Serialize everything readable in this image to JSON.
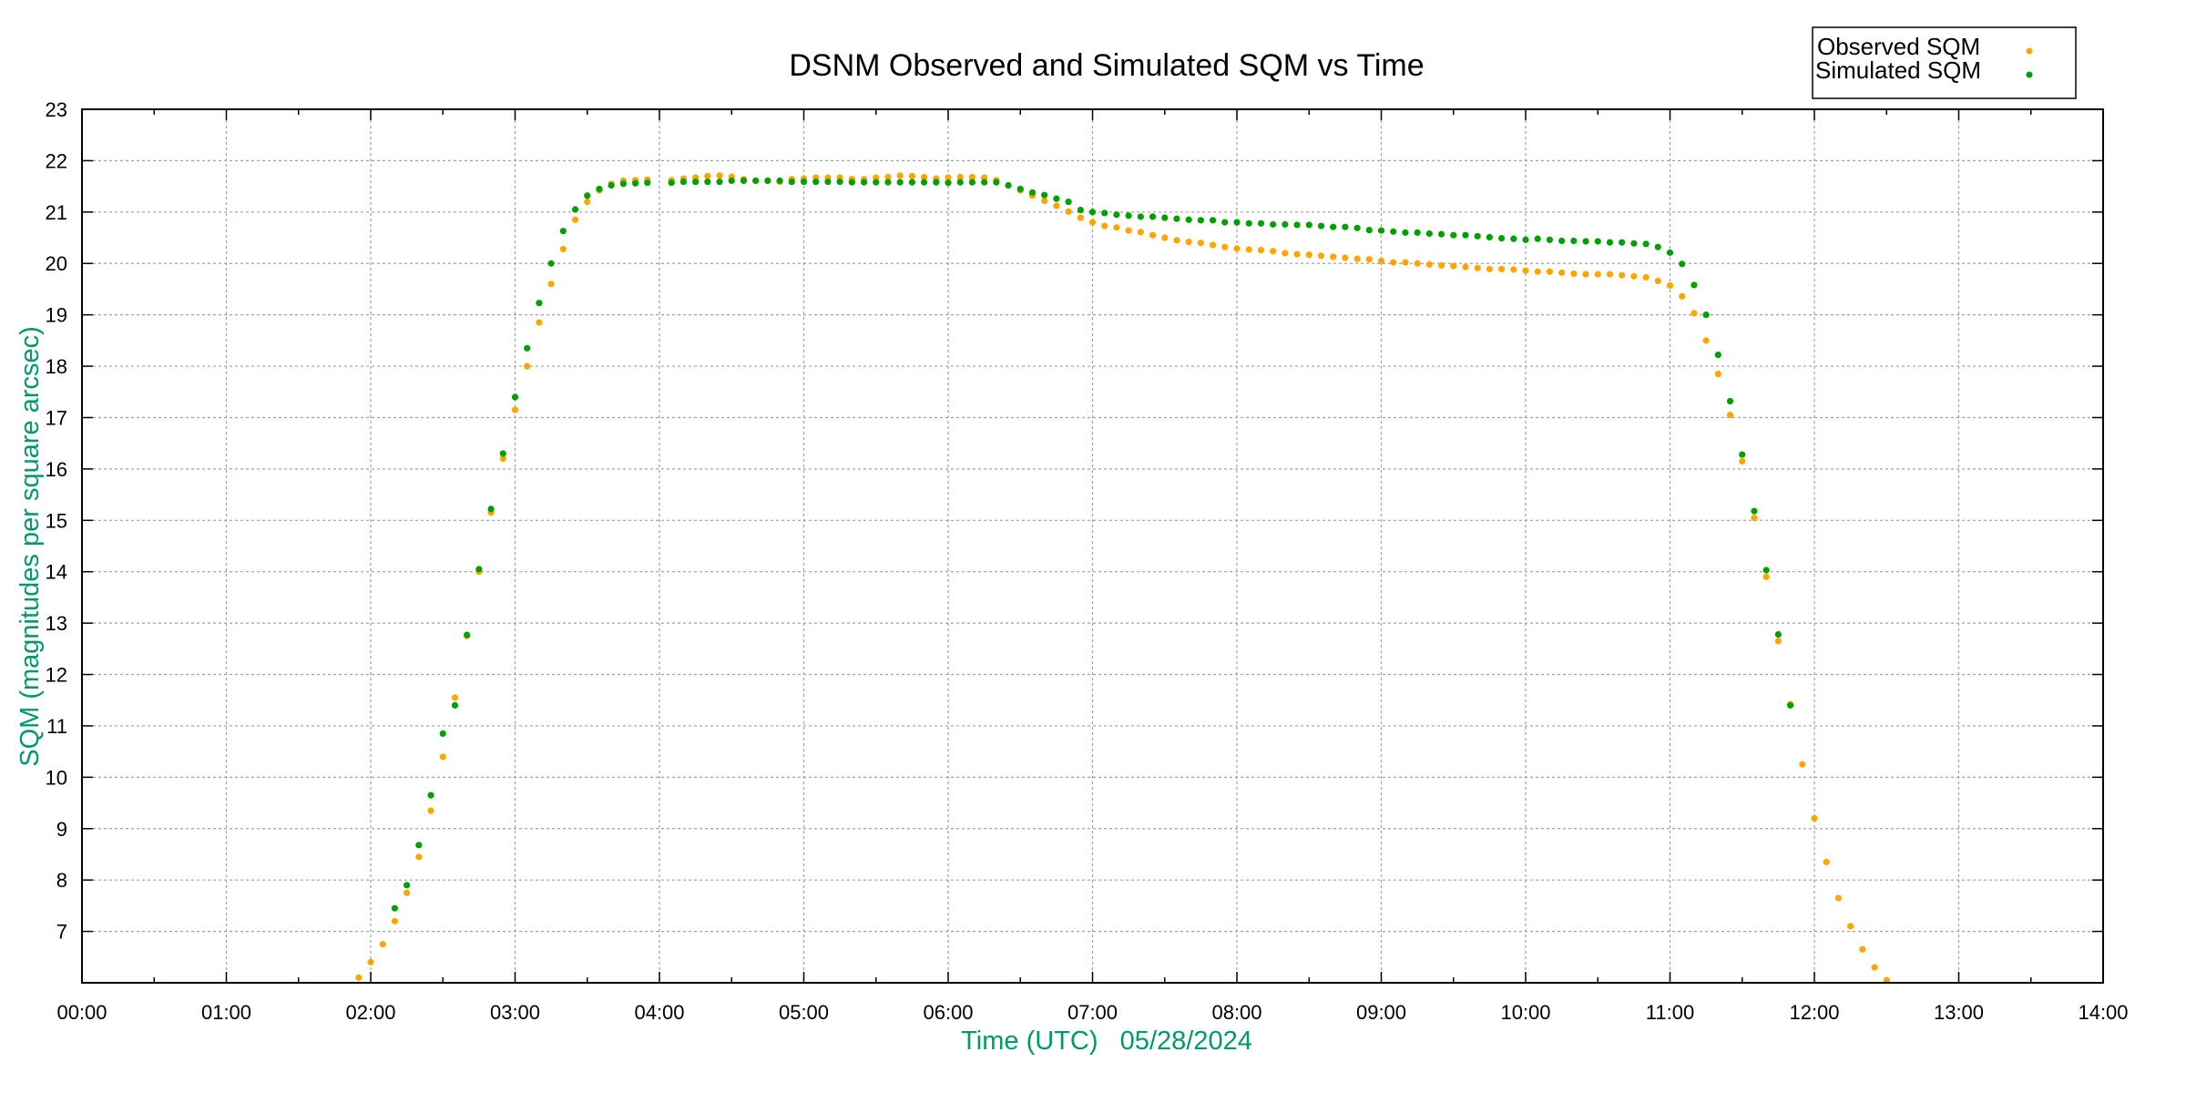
{
  "chart_data": {
    "type": "scatter",
    "title": "DSNM Observed and Simulated SQM vs Time",
    "xlabel": "Time (UTC)   05/28/2024",
    "ylabel": "SQM (magnitudes per square arcsec)",
    "xlim": [
      "00:00",
      "14:00"
    ],
    "ylim": [
      6,
      23
    ],
    "x_ticks": [
      "00:00",
      "01:00",
      "02:00",
      "03:00",
      "04:00",
      "05:00",
      "06:00",
      "07:00",
      "08:00",
      "09:00",
      "10:00",
      "11:00",
      "12:00",
      "13:00",
      "14:00"
    ],
    "y_ticks": [
      7,
      8,
      9,
      10,
      11,
      12,
      13,
      14,
      15,
      16,
      17,
      18,
      19,
      20,
      21,
      22,
      23
    ],
    "grid": true,
    "legend_position": "top-right",
    "series": [
      {
        "name": "Observed SQM",
        "color": "#ffa500",
        "points": [
          [
            "01:55",
            6.1
          ],
          [
            "02:00",
            6.4
          ],
          [
            "02:05",
            6.75
          ],
          [
            "02:10",
            7.2
          ],
          [
            "02:15",
            7.75
          ],
          [
            "02:20",
            8.45
          ],
          [
            "02:25",
            9.35
          ],
          [
            "02:30",
            10.4
          ],
          [
            "02:35",
            11.55
          ],
          [
            "02:40",
            12.75
          ],
          [
            "02:45",
            14.0
          ],
          [
            "02:50",
            15.15
          ],
          [
            "02:55",
            16.2
          ],
          [
            "03:00",
            17.15
          ],
          [
            "03:05",
            18.0
          ],
          [
            "03:10",
            18.85
          ],
          [
            "03:15",
            19.6
          ],
          [
            "03:20",
            20.28
          ],
          [
            "03:25",
            20.85
          ],
          [
            "03:30",
            21.2
          ],
          [
            "03:35",
            21.42
          ],
          [
            "03:40",
            21.55
          ],
          [
            "03:45",
            21.61
          ],
          [
            "03:50",
            21.62
          ],
          [
            "03:55",
            21.63
          ],
          [
            "04:05",
            21.62
          ],
          [
            "04:10",
            21.65
          ],
          [
            "04:15",
            21.67
          ],
          [
            "04:20",
            21.7
          ],
          [
            "04:25",
            21.71
          ],
          [
            "04:30",
            21.69
          ],
          [
            "04:35",
            21.64
          ],
          [
            "04:40",
            21.61
          ],
          [
            "04:45",
            21.61
          ],
          [
            "04:50",
            21.59
          ],
          [
            "04:55",
            21.64
          ],
          [
            "05:00",
            21.65
          ],
          [
            "05:05",
            21.67
          ],
          [
            "05:10",
            21.67
          ],
          [
            "05:15",
            21.67
          ],
          [
            "05:20",
            21.64
          ],
          [
            "05:25",
            21.64
          ],
          [
            "05:30",
            21.67
          ],
          [
            "05:35",
            21.68
          ],
          [
            "05:40",
            21.71
          ],
          [
            "05:45",
            21.7
          ],
          [
            "05:50",
            21.68
          ],
          [
            "05:55",
            21.65
          ],
          [
            "06:00",
            21.67
          ],
          [
            "06:05",
            21.68
          ],
          [
            "06:10",
            21.68
          ],
          [
            "06:15",
            21.67
          ],
          [
            "06:20",
            21.62
          ],
          [
            "06:25",
            21.52
          ],
          [
            "06:30",
            21.42
          ],
          [
            "06:35",
            21.32
          ],
          [
            "06:40",
            21.22
          ],
          [
            "06:45",
            21.12
          ],
          [
            "06:50",
            21.01
          ],
          [
            "06:55",
            20.89
          ],
          [
            "07:00",
            20.8
          ],
          [
            "07:05",
            20.73
          ],
          [
            "07:10",
            20.7
          ],
          [
            "07:15",
            20.64
          ],
          [
            "07:20",
            20.61
          ],
          [
            "07:25",
            20.55
          ],
          [
            "07:30",
            20.5
          ],
          [
            "07:35",
            20.45
          ],
          [
            "07:40",
            20.42
          ],
          [
            "07:45",
            20.4
          ],
          [
            "07:50",
            20.36
          ],
          [
            "07:55",
            20.32
          ],
          [
            "08:00",
            20.29
          ],
          [
            "08:05",
            20.27
          ],
          [
            "08:10",
            20.26
          ],
          [
            "08:15",
            20.24
          ],
          [
            "08:20",
            20.2
          ],
          [
            "08:25",
            20.18
          ],
          [
            "08:30",
            20.17
          ],
          [
            "08:35",
            20.15
          ],
          [
            "08:40",
            20.13
          ],
          [
            "08:45",
            20.11
          ],
          [
            "08:50",
            20.09
          ],
          [
            "08:55",
            20.08
          ],
          [
            "09:00",
            20.05
          ],
          [
            "09:05",
            20.02
          ],
          [
            "09:10",
            20.02
          ],
          [
            "09:15",
            20.0
          ],
          [
            "09:20",
            19.98
          ],
          [
            "09:25",
            19.96
          ],
          [
            "09:30",
            19.95
          ],
          [
            "09:35",
            19.93
          ],
          [
            "09:40",
            19.91
          ],
          [
            "09:45",
            19.89
          ],
          [
            "09:50",
            19.89
          ],
          [
            "09:55",
            19.88
          ],
          [
            "10:00",
            19.86
          ],
          [
            "10:05",
            19.84
          ],
          [
            "10:10",
            19.84
          ],
          [
            "10:15",
            19.82
          ],
          [
            "10:20",
            19.8
          ],
          [
            "10:25",
            19.79
          ],
          [
            "10:30",
            19.79
          ],
          [
            "10:35",
            19.79
          ],
          [
            "10:40",
            19.77
          ],
          [
            "10:45",
            19.75
          ],
          [
            "10:50",
            19.73
          ],
          [
            "10:55",
            19.66
          ],
          [
            "11:00",
            19.57
          ],
          [
            "11:05",
            19.36
          ],
          [
            "11:10",
            19.03
          ],
          [
            "11:15",
            18.5
          ],
          [
            "11:20",
            17.85
          ],
          [
            "11:25",
            17.05
          ],
          [
            "11:30",
            16.15
          ],
          [
            "11:35",
            15.05
          ],
          [
            "11:40",
            13.9
          ],
          [
            "11:45",
            12.65
          ],
          [
            "11:50",
            11.42
          ],
          [
            "11:55",
            10.25
          ],
          [
            "12:00",
            9.2
          ],
          [
            "12:05",
            8.35
          ],
          [
            "12:10",
            7.65
          ],
          [
            "12:15",
            7.1
          ],
          [
            "12:20",
            6.65
          ],
          [
            "12:25",
            6.3
          ],
          [
            "12:30",
            6.05
          ]
        ]
      },
      {
        "name": "Simulated SQM",
        "color": "#00a000",
        "points": [
          [
            "02:10",
            7.45
          ],
          [
            "02:15",
            7.9
          ],
          [
            "02:20",
            8.68
          ],
          [
            "02:25",
            9.65
          ],
          [
            "02:30",
            10.85
          ],
          [
            "02:35",
            11.4
          ],
          [
            "02:40",
            12.77
          ],
          [
            "02:45",
            14.05
          ],
          [
            "02:50",
            15.22
          ],
          [
            "02:55",
            16.3
          ],
          [
            "03:00",
            17.4
          ],
          [
            "03:05",
            18.35
          ],
          [
            "03:10",
            19.23
          ],
          [
            "03:15",
            20.0
          ],
          [
            "03:20",
            20.63
          ],
          [
            "03:25",
            21.05
          ],
          [
            "03:30",
            21.32
          ],
          [
            "03:35",
            21.45
          ],
          [
            "03:40",
            21.52
          ],
          [
            "03:45",
            21.55
          ],
          [
            "03:50",
            21.56
          ],
          [
            "03:55",
            21.57
          ],
          [
            "04:05",
            21.57
          ],
          [
            "04:10",
            21.59
          ],
          [
            "04:15",
            21.59
          ],
          [
            "04:20",
            21.59
          ],
          [
            "04:25",
            21.59
          ],
          [
            "04:30",
            21.61
          ],
          [
            "04:35",
            21.61
          ],
          [
            "04:40",
            21.61
          ],
          [
            "04:45",
            21.61
          ],
          [
            "04:50",
            21.61
          ],
          [
            "04:55",
            21.59
          ],
          [
            "05:00",
            21.59
          ],
          [
            "05:05",
            21.59
          ],
          [
            "05:10",
            21.59
          ],
          [
            "05:15",
            21.59
          ],
          [
            "05:20",
            21.58
          ],
          [
            "05:25",
            21.58
          ],
          [
            "05:30",
            21.58
          ],
          [
            "05:35",
            21.58
          ],
          [
            "05:40",
            21.58
          ],
          [
            "05:45",
            21.58
          ],
          [
            "05:50",
            21.58
          ],
          [
            "05:55",
            21.58
          ],
          [
            "06:00",
            21.57
          ],
          [
            "06:05",
            21.58
          ],
          [
            "06:10",
            21.58
          ],
          [
            "06:15",
            21.58
          ],
          [
            "06:20",
            21.58
          ],
          [
            "06:25",
            21.52
          ],
          [
            "06:30",
            21.45
          ],
          [
            "06:35",
            21.38
          ],
          [
            "06:40",
            21.33
          ],
          [
            "06:45",
            21.26
          ],
          [
            "06:50",
            21.2
          ],
          [
            "06:55",
            21.04
          ],
          [
            "07:00",
            21.0
          ],
          [
            "07:05",
            20.98
          ],
          [
            "07:10",
            20.95
          ],
          [
            "07:15",
            20.93
          ],
          [
            "07:20",
            20.91
          ],
          [
            "07:25",
            20.91
          ],
          [
            "07:30",
            20.89
          ],
          [
            "07:35",
            20.87
          ],
          [
            "07:40",
            20.85
          ],
          [
            "07:45",
            20.84
          ],
          [
            "07:50",
            20.84
          ],
          [
            "07:55",
            20.8
          ],
          [
            "08:00",
            20.8
          ],
          [
            "08:05",
            20.78
          ],
          [
            "08:10",
            20.78
          ],
          [
            "08:15",
            20.76
          ],
          [
            "08:20",
            20.76
          ],
          [
            "08:25",
            20.75
          ],
          [
            "08:30",
            20.75
          ],
          [
            "08:35",
            20.73
          ],
          [
            "08:40",
            20.71
          ],
          [
            "08:45",
            20.71
          ],
          [
            "08:50",
            20.69
          ],
          [
            "08:55",
            20.65
          ],
          [
            "09:00",
            20.64
          ],
          [
            "09:05",
            20.62
          ],
          [
            "09:10",
            20.6
          ],
          [
            "09:15",
            20.6
          ],
          [
            "09:20",
            20.58
          ],
          [
            "09:25",
            20.57
          ],
          [
            "09:30",
            20.55
          ],
          [
            "09:35",
            20.55
          ],
          [
            "09:40",
            20.53
          ],
          [
            "09:45",
            20.51
          ],
          [
            "09:50",
            20.49
          ],
          [
            "09:55",
            20.48
          ],
          [
            "10:00",
            20.46
          ],
          [
            "10:05",
            20.48
          ],
          [
            "10:10",
            20.46
          ],
          [
            "10:15",
            20.44
          ],
          [
            "10:20",
            20.44
          ],
          [
            "10:25",
            20.43
          ],
          [
            "10:30",
            20.43
          ],
          [
            "10:35",
            20.41
          ],
          [
            "10:40",
            20.41
          ],
          [
            "10:45",
            20.39
          ],
          [
            "10:50",
            20.38
          ],
          [
            "10:55",
            20.32
          ],
          [
            "11:00",
            20.21
          ],
          [
            "11:05",
            19.99
          ],
          [
            "11:10",
            19.58
          ],
          [
            "11:15",
            19.0
          ],
          [
            "11:20",
            18.22
          ],
          [
            "11:25",
            17.32
          ],
          [
            "11:30",
            16.28
          ],
          [
            "11:35",
            15.18
          ],
          [
            "11:40",
            14.03
          ],
          [
            "11:45",
            12.78
          ],
          [
            "11:50",
            11.4
          ]
        ]
      }
    ]
  }
}
